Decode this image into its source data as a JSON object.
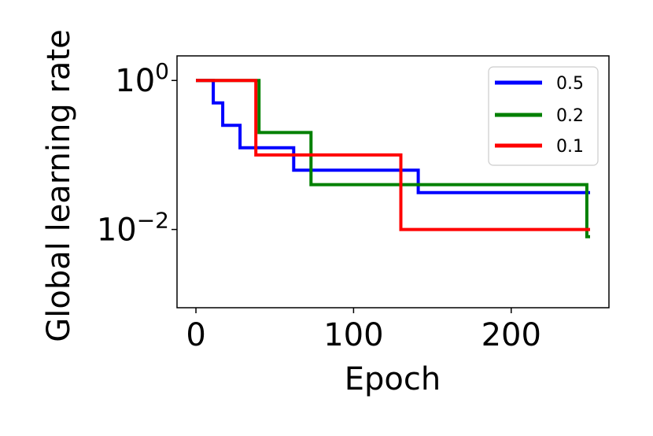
{
  "chart_data": {
    "type": "line",
    "xlabel": "Epoch",
    "ylabel": "Global learning rate",
    "xlim": [
      -12,
      262
    ],
    "ylim_log10": [
      -3.05,
      0.33
    ],
    "yscale": "log",
    "grid": false,
    "legend_placement": "top-right",
    "x_ticks": [
      0,
      100,
      200
    ],
    "x_tick_labels": [
      "0",
      "100",
      "200"
    ],
    "y_ticks_log10": [
      0,
      -2
    ],
    "y_tick_labels": [
      {
        "base": "10",
        "exp": "0"
      },
      {
        "base": "10",
        "exp": "−2"
      }
    ],
    "series": [
      {
        "name": "0.5",
        "color": "#0000ff",
        "x": [
          0,
          11,
          11,
          17,
          17,
          28,
          28,
          62,
          62,
          141,
          141,
          250
        ],
        "y": [
          1.0,
          1.0,
          0.5,
          0.5,
          0.25,
          0.25,
          0.125,
          0.125,
          0.0625,
          0.0625,
          0.03125,
          0.03125
        ]
      },
      {
        "name": "0.2",
        "color": "#008000",
        "x": [
          0,
          40,
          40,
          73,
          73,
          248,
          248,
          250
        ],
        "y": [
          1.0,
          1.0,
          0.2,
          0.2,
          0.04,
          0.04,
          0.008,
          0.008
        ]
      },
      {
        "name": "0.1",
        "color": "#ff0000",
        "x": [
          0,
          38,
          38,
          130,
          130,
          250
        ],
        "y": [
          1.0,
          1.0,
          0.1,
          0.1,
          0.01,
          0.01
        ]
      }
    ]
  }
}
